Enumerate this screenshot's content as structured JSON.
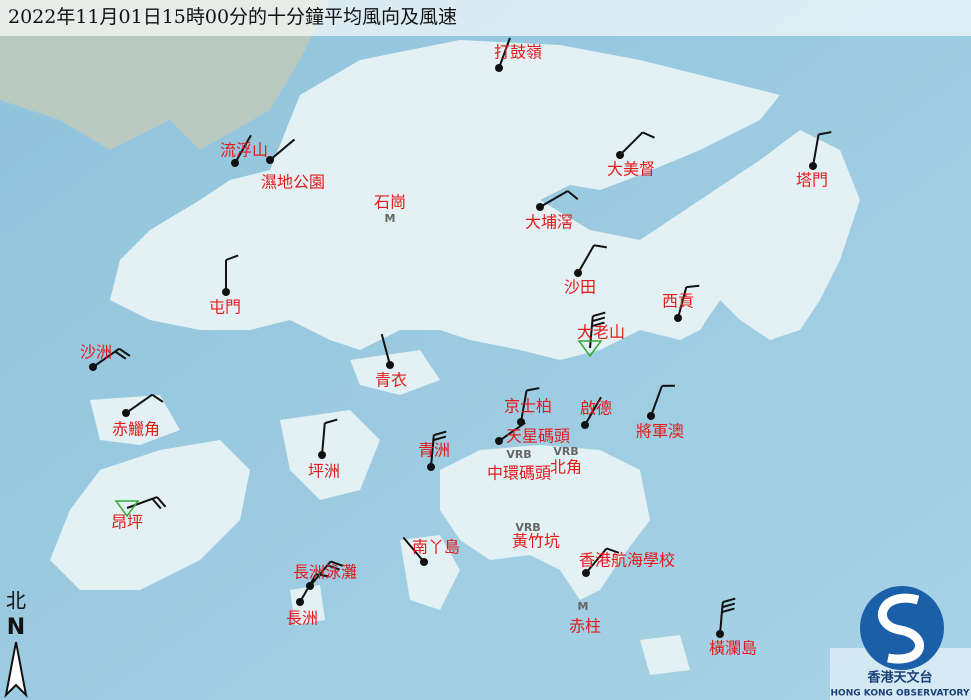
{
  "title": "2022年11月01日15時00分的十分鐘平均風向及風速",
  "stations": [
    "打鼓嶺",
    "流浮山",
    "濕地公園",
    "石崗",
    "大美督",
    "塔門",
    "大埔滘",
    "沙田",
    "屯門",
    "西貢",
    "大老山",
    "沙洲",
    "青衣",
    "赤鱲角",
    "京士柏",
    "啟德",
    "將軍澳",
    "天星碼頭",
    "北角",
    "坪洲",
    "青洲",
    "中環碼頭",
    "昂坪",
    "黃竹坑",
    "南丫島",
    "香港航海學校",
    "長洲泳灘",
    "長洲",
    "赤柱",
    "橫瀾島"
  ],
  "markers": [
    "M",
    "VRB",
    "VRB",
    "VRB",
    "M"
  ],
  "compass": {
    "label": "北",
    "letter": "N"
  },
  "logo": {
    "name": "香港天文台",
    "name_en": "HONG KONG OBSERVATORY"
  }
}
